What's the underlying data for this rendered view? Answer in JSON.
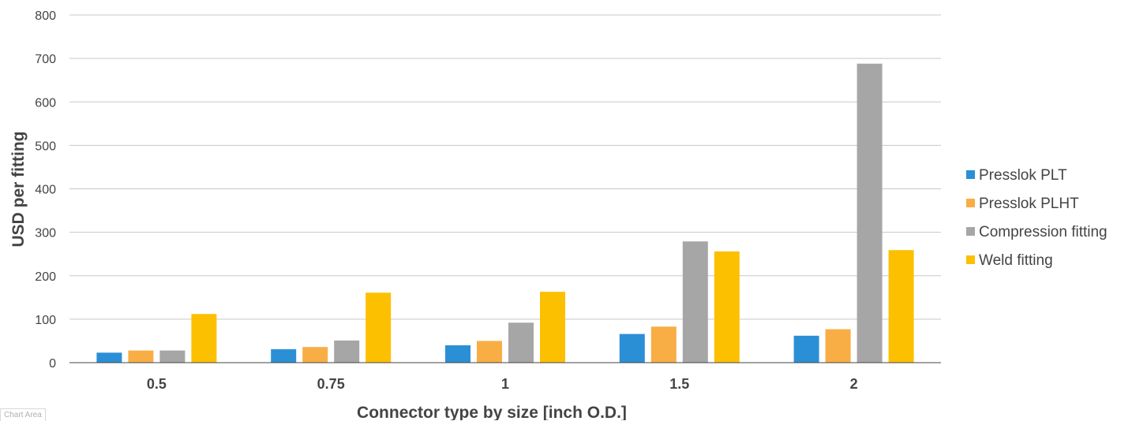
{
  "chart_data": {
    "type": "bar",
    "title": "",
    "xlabel": "Connector type by size [inch O.D.]",
    "ylabel": "USD per fitting",
    "categories": [
      "0.5",
      "0.75",
      "1",
      "1.5",
      "2"
    ],
    "ylim": [
      0,
      800
    ],
    "yticks": [
      0,
      100,
      200,
      300,
      400,
      500,
      600,
      700,
      800
    ],
    "grid": true,
    "legend_position": "right",
    "series": [
      {
        "name": "Presslok PLT",
        "color": "#2b8fd6",
        "values": [
          23,
          31,
          40,
          66,
          62
        ]
      },
      {
        "name": "Presslok PLHT",
        "color": "#f8ae45",
        "values": [
          28,
          36,
          50,
          83,
          77
        ]
      },
      {
        "name": "Compression fitting",
        "color": "#a6a6a6",
        "values": [
          28,
          51,
          92,
          279,
          688
        ]
      },
      {
        "name": "Weld fitting",
        "color": "#fcc000",
        "values": [
          112,
          161,
          163,
          256,
          259
        ]
      }
    ]
  },
  "ui": {
    "chart_area_label": "Chart Area"
  }
}
